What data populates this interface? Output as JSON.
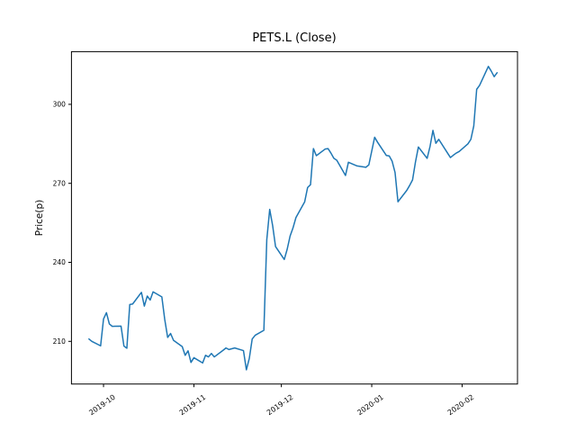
{
  "figure": {
    "background": "#ffffff"
  },
  "chart_data": {
    "type": "line",
    "title": "PETS.L (Close)",
    "xlabel": "",
    "ylabel": "Price(p)",
    "grid": false,
    "legend": "none",
    "line_color": "#1f77b4",
    "axis_color": "#000000",
    "ylim": [
      193.8,
      320.0
    ],
    "xlim": [
      "2019-09-20",
      "2020-02-20"
    ],
    "y_ticks": [
      210,
      240,
      270,
      300
    ],
    "x_ticks": [
      {
        "label": "2019-10",
        "date": "2019-10-01"
      },
      {
        "label": "2019-11",
        "date": "2019-11-01"
      },
      {
        "label": "2019-12",
        "date": "2019-12-01"
      },
      {
        "label": "2020-01",
        "date": "2020-01-01"
      },
      {
        "label": "2020-02",
        "date": "2020-02-01"
      }
    ],
    "series": [
      {
        "name": "Close",
        "color": "#1f77b4",
        "dates": [
          "2019-09-26",
          "2019-09-27",
          "2019-09-30",
          "2019-10-01",
          "2019-10-02",
          "2019-10-03",
          "2019-10-04",
          "2019-10-07",
          "2019-10-08",
          "2019-10-09",
          "2019-10-10",
          "2019-10-11",
          "2019-10-14",
          "2019-10-15",
          "2019-10-16",
          "2019-10-17",
          "2019-10-18",
          "2019-10-21",
          "2019-10-22",
          "2019-10-23",
          "2019-10-24",
          "2019-10-25",
          "2019-10-28",
          "2019-10-29",
          "2019-10-30",
          "2019-10-31",
          "2019-11-01",
          "2019-11-04",
          "2019-11-05",
          "2019-11-06",
          "2019-11-07",
          "2019-11-08",
          "2019-11-11",
          "2019-11-12",
          "2019-11-13",
          "2019-11-14",
          "2019-11-15",
          "2019-11-18",
          "2019-11-19",
          "2019-11-20",
          "2019-11-21",
          "2019-11-22",
          "2019-11-25",
          "2019-11-26",
          "2019-11-27",
          "2019-11-28",
          "2019-11-29",
          "2019-12-02",
          "2019-12-03",
          "2019-12-04",
          "2019-12-05",
          "2019-12-06",
          "2019-12-09",
          "2019-12-10",
          "2019-12-11",
          "2019-12-12",
          "2019-12-13",
          "2019-12-16",
          "2019-12-17",
          "2019-12-18",
          "2019-12-19",
          "2019-12-20",
          "2019-12-23",
          "2019-12-24",
          "2019-12-27",
          "2019-12-30",
          "2019-12-31",
          "2020-01-02",
          "2020-01-03",
          "2020-01-06",
          "2020-01-07",
          "2020-01-08",
          "2020-01-09",
          "2020-01-10",
          "2020-01-13",
          "2020-01-14",
          "2020-01-15",
          "2020-01-16",
          "2020-01-17",
          "2020-01-20",
          "2020-01-21",
          "2020-01-22",
          "2020-01-23",
          "2020-01-24",
          "2020-01-27",
          "2020-01-28",
          "2020-01-29",
          "2020-01-30",
          "2020-01-31",
          "2020-02-03",
          "2020-02-04",
          "2020-02-05",
          "2020-02-06",
          "2020-02-07",
          "2020-02-10",
          "2020-02-11",
          "2020-02-12",
          "2020-02-13"
        ],
        "values": [
          210.9,
          210.0,
          208.3,
          218.5,
          220.9,
          216.6,
          215.7,
          215.8,
          208.2,
          207.4,
          224.0,
          224.2,
          228.6,
          223.4,
          227.2,
          225.7,
          228.8,
          226.9,
          218.3,
          211.5,
          213.0,
          210.4,
          208.0,
          204.7,
          206.4,
          202.0,
          203.8,
          201.8,
          204.7,
          204.1,
          205.4,
          204.1,
          206.6,
          207.5,
          206.9,
          207.2,
          207.5,
          206.5,
          199.2,
          203.5,
          210.9,
          212.3,
          214.2,
          248.6,
          260.1,
          254.0,
          246.0,
          241.1,
          245.0,
          250.0,
          253.1,
          257.0,
          263.0,
          268.4,
          269.5,
          283.2,
          280.5,
          283.0,
          283.2,
          281.5,
          279.5,
          278.8,
          273.0,
          278.0,
          276.6,
          276.1,
          277.0,
          287.5,
          285.6,
          280.6,
          280.4,
          278.4,
          274.1,
          263.0,
          267.3,
          269.2,
          271.3,
          278.1,
          283.8,
          279.5,
          284.0,
          290.1,
          285.2,
          286.7,
          281.5,
          279.8,
          280.7,
          281.5,
          282.1,
          285.0,
          286.7,
          291.8,
          305.7,
          307.2,
          314.4,
          312.6,
          310.5,
          312.0
        ]
      }
    ]
  }
}
